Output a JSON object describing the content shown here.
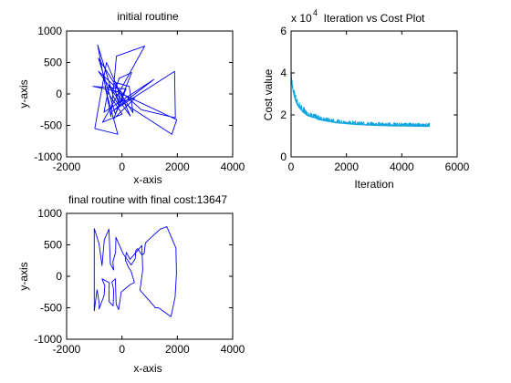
{
  "figure": {
    "background": "#ffffff",
    "axes_color": "#000000"
  },
  "chart_data": [
    {
      "type": "line",
      "title": "initial routine",
      "xlabel": "x-axis",
      "ylabel": "y-axis",
      "xlim": [
        -2000,
        4000
      ],
      "ylim": [
        -1000,
        1000
      ],
      "xticks": [
        -2000,
        0,
        2000,
        4000
      ],
      "xtick_labels": [
        "-2000",
        "0",
        "2000",
        "4000"
      ],
      "yticks": [
        -1000,
        -500,
        0,
        500,
        1000
      ],
      "ytick_labels": [
        "-1000",
        "-500",
        "0",
        "500",
        "1000"
      ],
      "grid": false,
      "series": [
        {
          "color": "#0000ff",
          "closed": true,
          "x": [
            -300,
            -880,
            -400,
            -200,
            820,
            -700,
            10,
            -600,
            -150,
            -980,
            -560,
            300,
            -850,
            -280,
            700,
            1930,
            1900,
            -360,
            1150,
            -650,
            -460,
            -80,
            -140,
            460,
            -310,
            150,
            -1050,
            -200,
            1980,
            1800,
            -30,
            -220,
            260,
            400,
            -850,
            -240,
            350,
            -100,
            -240,
            -120
          ],
          "y": [
            -50,
            780,
            -360,
            600,
            760,
            -450,
            -320,
            80,
            -640,
            -550,
            500,
            -350,
            360,
            130,
            -250,
            -380,
            360,
            -280,
            230,
            -290,
            140,
            -60,
            -130,
            -70,
            -400,
            80,
            120,
            40,
            -410,
            -640,
            -120,
            180,
            120,
            -300,
            570,
            -320,
            340,
            250,
            70,
            -180
          ]
        }
      ]
    },
    {
      "type": "line",
      "title": "Iteration vs Cost Plot",
      "exponent_label": "x 10",
      "exponent_power": "4",
      "xlabel": "Iteration",
      "ylabel": "Cost value",
      "xlim": [
        0,
        6000
      ],
      "ylim": [
        0,
        6
      ],
      "y_multiplier": 10000,
      "xticks": [
        0,
        2000,
        4000,
        6000
      ],
      "xtick_labels": [
        "0",
        "2000",
        "4000",
        "6000"
      ],
      "yticks": [
        0,
        2,
        4,
        6
      ],
      "ytick_labels": [
        "0",
        "2",
        "4",
        "6"
      ],
      "grid": false,
      "series": [
        {
          "color": "#0ea5e0",
          "noisy": true,
          "x": [
            0,
            30,
            80,
            150,
            250,
            400,
            600,
            800,
            1000,
            1300,
            1600,
            2000,
            2500,
            3000,
            3500,
            4000,
            4500,
            5000
          ],
          "y": [
            4.1,
            3.5,
            3.1,
            2.75,
            2.45,
            2.2,
            2.0,
            1.9,
            1.8,
            1.72,
            1.65,
            1.6,
            1.55,
            1.52,
            1.5,
            1.49,
            1.48,
            1.47
          ],
          "spread": [
            0.1,
            0.35,
            0.35,
            0.3,
            0.3,
            0.28,
            0.25,
            0.22,
            0.2,
            0.18,
            0.17,
            0.16,
            0.16,
            0.16,
            0.16,
            0.16,
            0.16,
            0.16
          ]
        }
      ]
    },
    {
      "type": "line",
      "title": "final routine with final cost:13647",
      "xlabel": "x-axis",
      "ylabel": "y-axis",
      "xlim": [
        -2000,
        4000
      ],
      "ylim": [
        -1000,
        1000
      ],
      "xticks": [
        -2000,
        0,
        2000,
        4000
      ],
      "xtick_labels": [
        "-2000",
        "0",
        "2000",
        "4000"
      ],
      "yticks": [
        -1000,
        -500,
        0,
        500,
        1000
      ],
      "ytick_labels": [
        "-1000",
        "-500",
        "0",
        "500",
        "1000"
      ],
      "grid": false,
      "series": [
        {
          "color": "#0000ff",
          "closed": true,
          "x": [
            -900,
            -820,
            -830,
            -650,
            -620,
            -720,
            -460,
            -470,
            -320,
            -300,
            -360,
            -240,
            -210,
            -120,
            -80,
            -30,
            300,
            450,
            330,
            240,
            120,
            160,
            290,
            720,
            750,
            650,
            1150,
            1200,
            1320,
            1770,
            1920,
            1970,
            1950,
            1620,
            1380,
            1010,
            850,
            800,
            720,
            560,
            500,
            480,
            330,
            40,
            -220,
            -230,
            -330,
            -300,
            -420,
            -470,
            -640,
            -720,
            -830,
            -1000,
            -1000
          ],
          "y": [
            -210,
            -440,
            -520,
            -310,
            -150,
            -40,
            -100,
            -400,
            -470,
            -220,
            -90,
            -40,
            -440,
            -530,
            -410,
            -250,
            -130,
            -100,
            80,
            140,
            260,
            380,
            270,
            490,
            100,
            -220,
            -470,
            -500,
            -500,
            -640,
            -330,
            50,
            450,
            790,
            750,
            600,
            530,
            360,
            340,
            440,
            410,
            280,
            180,
            360,
            620,
            380,
            230,
            100,
            200,
            750,
            580,
            170,
            520,
            760,
            -550
          ]
        }
      ]
    }
  ]
}
